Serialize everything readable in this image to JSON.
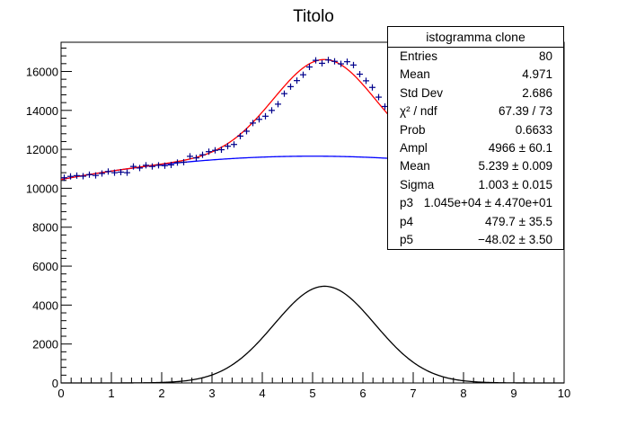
{
  "chart_data": {
    "type": "histogram-fit",
    "title": "Titolo",
    "xlim": [
      0,
      10
    ],
    "ylim": [
      0,
      17500
    ],
    "x_ticks": [
      "0",
      "1",
      "2",
      "3",
      "4",
      "5",
      "6",
      "7",
      "8",
      "9",
      "10"
    ],
    "y_ticks": [
      "0",
      "2000",
      "4000",
      "6000",
      "8000",
      "10000",
      "12000",
      "14000",
      "16000"
    ],
    "y_tick_values": [
      0,
      2000,
      4000,
      6000,
      8000,
      10000,
      12000,
      14000,
      16000
    ],
    "data_points": {
      "x": [
        0.0625,
        0.1875,
        0.3125,
        0.4375,
        0.5625,
        0.6875,
        0.8125,
        0.9375,
        1.0625,
        1.1875,
        1.3125,
        1.4375,
        1.5625,
        1.6875,
        1.8125,
        1.9375,
        2.0625,
        2.1875,
        2.3125,
        2.4375,
        2.5625,
        2.6875,
        2.8125,
        2.9375,
        3.0625,
        3.1875,
        3.3125,
        3.4375,
        3.5625,
        3.6875,
        3.8125,
        3.9375,
        4.0625,
        4.1875,
        4.3125,
        4.4375,
        4.5625,
        4.6875,
        4.8125,
        4.9375,
        5.0625,
        5.1875,
        5.3125,
        5.4375,
        5.5625,
        5.6875,
        5.8125,
        5.9375,
        6.0625,
        6.1875,
        6.3125,
        6.4375
      ],
      "y": [
        10540,
        10610,
        10650,
        10620,
        10700,
        10660,
        10760,
        10860,
        10800,
        10830,
        10800,
        11120,
        11040,
        11180,
        11120,
        11180,
        11160,
        11200,
        11320,
        11340,
        11640,
        11560,
        11720,
        11880,
        11950,
        11980,
        12160,
        12250,
        12680,
        12930,
        13350,
        13540,
        13700,
        14000,
        14320,
        14860,
        15220,
        15530,
        15830,
        16230,
        16570,
        16420,
        16590,
        16520,
        16390,
        16500,
        16330,
        15860,
        15520,
        15180,
        14680,
        14200
      ]
    },
    "fit_params": {
      "ampl": 4966,
      "mean": 5.239,
      "sigma": 1.003,
      "p3": 10450,
      "p4": 479.7,
      "p5": -48.02
    },
    "series": [
      {
        "name": "total fit",
        "color": "#ff0000"
      },
      {
        "name": "background",
        "color": "#0000ff"
      },
      {
        "name": "gaussian",
        "color": "#000000"
      }
    ],
    "marker_color": "#00008b"
  },
  "stats": {
    "title": "istogramma clone",
    "rows": [
      {
        "key": "Entries",
        "value": "80"
      },
      {
        "key": "Mean",
        "value": "4.971"
      },
      {
        "key": "Std Dev",
        "value": "2.686"
      },
      {
        "key": "χ² / ndf",
        "value": "67.39 / 73"
      },
      {
        "key": "Prob",
        "value": "0.6633"
      },
      {
        "key": "Ampl",
        "value": "4966 ± 60.1"
      },
      {
        "key": "Mean",
        "value": "5.239 ± 0.009"
      },
      {
        "key": "Sigma",
        "value": "1.003 ± 0.015"
      },
      {
        "key": "p3",
        "value": "1.045e+04 ± 4.470e+01"
      },
      {
        "key": "p4",
        "value": "479.7 ± 35.5"
      },
      {
        "key": "p5",
        "value": "−48.02 ± 3.50"
      }
    ]
  }
}
